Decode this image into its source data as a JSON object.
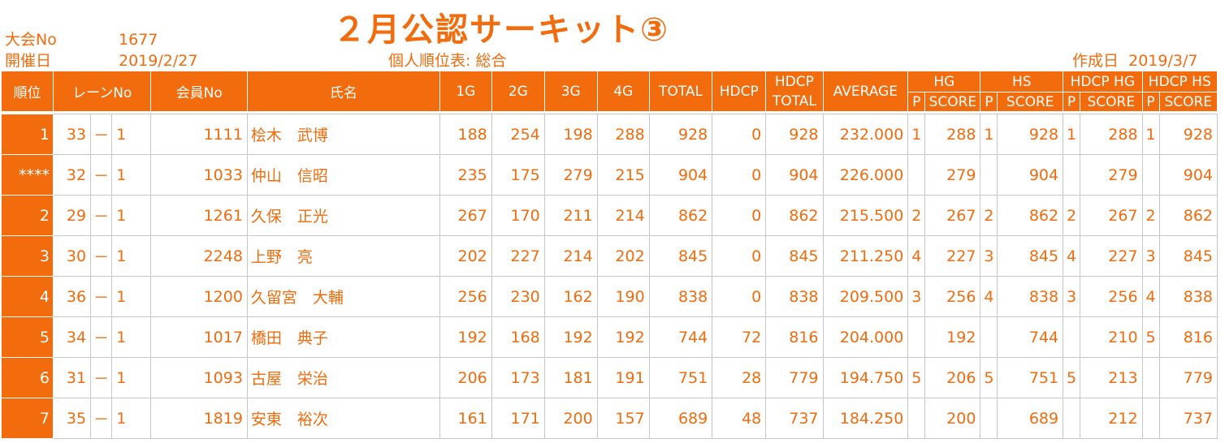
{
  "title": "２月公認サーキット③",
  "meta": {
    "tournament_no_label": "大会No",
    "tournament_no": "1677",
    "date_label": "開催日",
    "date": "2019/2/27",
    "sheet_label": "個人順位表: 総合",
    "created_label": "作成日",
    "created_date": "2019/3/7"
  },
  "headers": {
    "rank": "順位",
    "lane": "レーンNo",
    "member": "会員No",
    "name": "氏名",
    "g1": "1G",
    "g2": "2G",
    "g3": "3G",
    "g4": "4G",
    "total": "TOTAL",
    "hdcp": "HDCP",
    "hdcp_total_1": "HDCP",
    "hdcp_total_2": "TOTAL",
    "average": "AVERAGE",
    "hg": "HG",
    "hs": "HS",
    "hdcp_hg": "HDCP HG",
    "hdcp_hs": "HDCP HS",
    "p": "P",
    "score": "SCORE"
  },
  "rows": [
    {
      "rank": "1",
      "lane": "33",
      "sep": "－",
      "lane_sub": "1",
      "member": "1111",
      "name": "桧木　武博",
      "g1": "188",
      "g2": "254",
      "g3": "198",
      "g4": "288",
      "total": "928",
      "hdcp": "0",
      "hdcp_total": "928",
      "average": "232.000",
      "hg_p": "1",
      "hg_score": "288",
      "hs_p": "1",
      "hs_score": "928",
      "hhg_p": "1",
      "hhg_score": "288",
      "hhs_p": "1",
      "hhs_score": "928"
    },
    {
      "rank": "****",
      "lane": "32",
      "sep": "－",
      "lane_sub": "1",
      "member": "1033",
      "name": "仲山　信昭",
      "g1": "235",
      "g2": "175",
      "g3": "279",
      "g4": "215",
      "total": "904",
      "hdcp": "0",
      "hdcp_total": "904",
      "average": "226.000",
      "hg_p": "",
      "hg_score": "279",
      "hs_p": "",
      "hs_score": "904",
      "hhg_p": "",
      "hhg_score": "279",
      "hhs_p": "",
      "hhs_score": "904"
    },
    {
      "rank": "2",
      "lane": "29",
      "sep": "－",
      "lane_sub": "1",
      "member": "1261",
      "name": "久保　正光",
      "g1": "267",
      "g2": "170",
      "g3": "211",
      "g4": "214",
      "total": "862",
      "hdcp": "0",
      "hdcp_total": "862",
      "average": "215.500",
      "hg_p": "2",
      "hg_score": "267",
      "hs_p": "2",
      "hs_score": "862",
      "hhg_p": "2",
      "hhg_score": "267",
      "hhs_p": "2",
      "hhs_score": "862"
    },
    {
      "rank": "3",
      "lane": "30",
      "sep": "－",
      "lane_sub": "1",
      "member": "2248",
      "name": "上野　亮",
      "g1": "202",
      "g2": "227",
      "g3": "214",
      "g4": "202",
      "total": "845",
      "hdcp": "0",
      "hdcp_total": "845",
      "average": "211.250",
      "hg_p": "4",
      "hg_score": "227",
      "hs_p": "3",
      "hs_score": "845",
      "hhg_p": "4",
      "hhg_score": "227",
      "hhs_p": "3",
      "hhs_score": "845"
    },
    {
      "rank": "4",
      "lane": "36",
      "sep": "－",
      "lane_sub": "1",
      "member": "1200",
      "name": "久留宮　大輔",
      "g1": "256",
      "g2": "230",
      "g3": "162",
      "g4": "190",
      "total": "838",
      "hdcp": "0",
      "hdcp_total": "838",
      "average": "209.500",
      "hg_p": "3",
      "hg_score": "256",
      "hs_p": "4",
      "hs_score": "838",
      "hhg_p": "3",
      "hhg_score": "256",
      "hhs_p": "4",
      "hhs_score": "838"
    },
    {
      "rank": "5",
      "lane": "34",
      "sep": "－",
      "lane_sub": "1",
      "member": "1017",
      "name": "橋田　典子",
      "g1": "192",
      "g2": "168",
      "g3": "192",
      "g4": "192",
      "total": "744",
      "hdcp": "72",
      "hdcp_total": "816",
      "average": "204.000",
      "hg_p": "",
      "hg_score": "192",
      "hs_p": "",
      "hs_score": "744",
      "hhg_p": "",
      "hhg_score": "210",
      "hhs_p": "5",
      "hhs_score": "816"
    },
    {
      "rank": "6",
      "lane": "31",
      "sep": "－",
      "lane_sub": "1",
      "member": "1093",
      "name": "古屋　栄治",
      "g1": "206",
      "g2": "173",
      "g3": "181",
      "g4": "191",
      "total": "751",
      "hdcp": "28",
      "hdcp_total": "779",
      "average": "194.750",
      "hg_p": "5",
      "hg_score": "206",
      "hs_p": "5",
      "hs_score": "751",
      "hhg_p": "5",
      "hhg_score": "213",
      "hhs_p": "",
      "hhs_score": "779"
    },
    {
      "rank": "7",
      "lane": "35",
      "sep": "－",
      "lane_sub": "1",
      "member": "1819",
      "name": "安東　裕次",
      "g1": "161",
      "g2": "171",
      "g3": "200",
      "g4": "157",
      "total": "689",
      "hdcp": "48",
      "hdcp_total": "737",
      "average": "184.250",
      "hg_p": "",
      "hg_score": "200",
      "hs_p": "",
      "hs_score": "689",
      "hhg_p": "",
      "hhg_score": "212",
      "hhs_p": "",
      "hhs_score": "737"
    }
  ],
  "colors": {
    "accent": "#f26b0c",
    "header_text": "#ffffff",
    "grid": "#c8c8c8"
  }
}
